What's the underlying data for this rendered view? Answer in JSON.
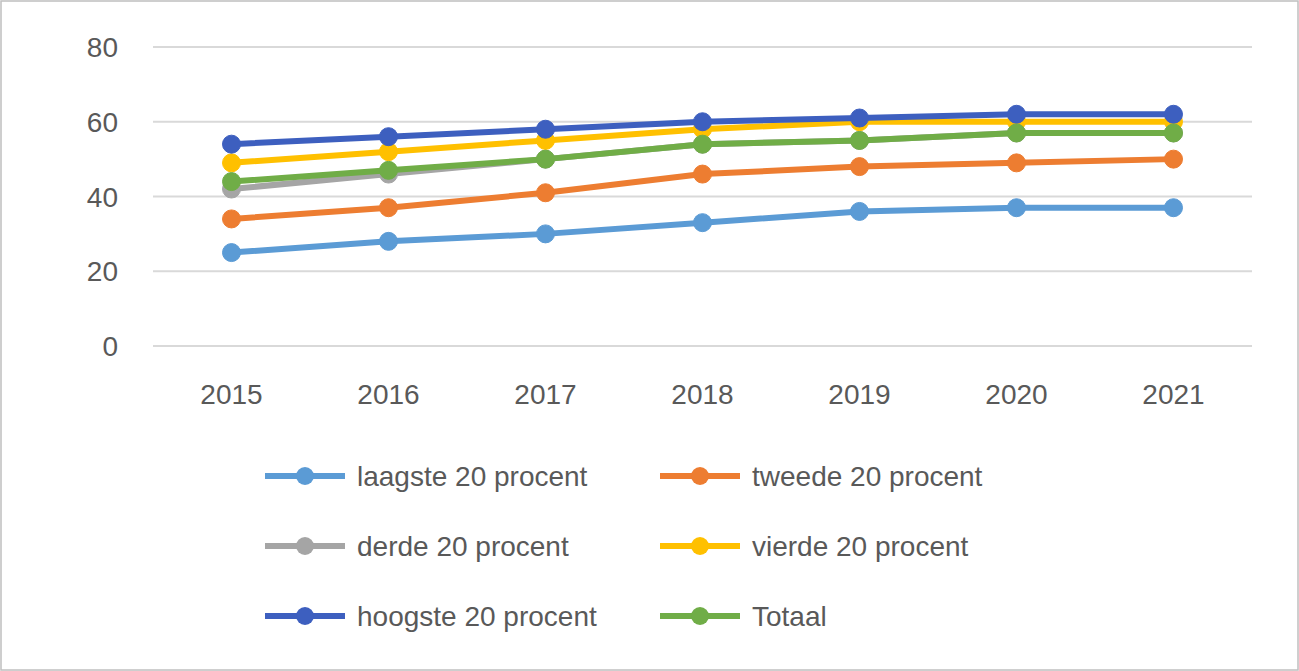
{
  "chart_data": {
    "type": "line",
    "categories": [
      "2015",
      "2016",
      "2017",
      "2018",
      "2019",
      "2020",
      "2021"
    ],
    "series": [
      {
        "name": "laagste 20 procent",
        "color": "#5b9bd5",
        "marker": "circle",
        "values": [
          25,
          28,
          30,
          33,
          36,
          37,
          37
        ]
      },
      {
        "name": "tweede 20 procent",
        "color": "#ed7d31",
        "marker": "circle",
        "values": [
          34,
          37,
          41,
          46,
          48,
          49,
          50
        ]
      },
      {
        "name": "derde 20 procent",
        "color": "#a5a5a5",
        "marker": "circle",
        "values": [
          42,
          46,
          50,
          54,
          55,
          57,
          57
        ]
      },
      {
        "name": "vierde 20 procent",
        "color": "#ffc000",
        "marker": "circle",
        "values": [
          49,
          52,
          55,
          58,
          60,
          60,
          60
        ]
      },
      {
        "name": "hoogste 20 procent",
        "color": "#3d5fbf",
        "marker": "circle",
        "values": [
          54,
          56,
          58,
          60,
          61,
          62,
          62
        ]
      },
      {
        "name": "Totaal",
        "color": "#70ad47",
        "marker": "circle",
        "values": [
          44,
          47,
          50,
          54,
          55,
          57,
          57
        ]
      }
    ],
    "ylim": [
      0,
      80
    ],
    "yticks": [
      0,
      20,
      40,
      60,
      80
    ],
    "grid": true,
    "legend": "bottom"
  }
}
